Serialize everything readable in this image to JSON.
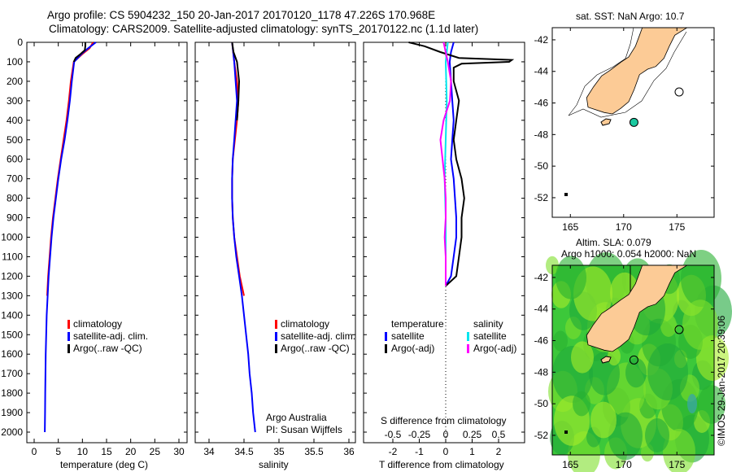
{
  "header": {
    "title_line1": "Argo profile: CS 5904232_150 20-Jan-2017 20170120_1178 47.226S 170.968E",
    "title_line2": "Climatology: CARS2009. Satellite-adjusted climatology: synTS_20170122.nc (1.1d later)"
  },
  "credit": "©IMOS 29-Jan-2017 20:39:06",
  "colors": {
    "climatology": "#ff0000",
    "satellite": "#0000ff",
    "argo": "#000000",
    "sal_satellite": "#00e5ee",
    "sal_argo": "#ff00ff",
    "land": "#fccb96",
    "float": "#1ac9a0"
  },
  "chart_data": [
    {
      "type": "line",
      "name": "temperature-profile",
      "xlabel": "temperature (deg C)",
      "ylabel": "depth",
      "xlim": [
        -1,
        31
      ],
      "ylim": [
        2130,
        0
      ],
      "xticks": [
        "0",
        "5",
        "10",
        "15",
        "20",
        "25",
        "30"
      ],
      "yticks": [
        "0",
        "100",
        "200",
        "300",
        "400",
        "500",
        "600",
        "700",
        "800",
        "900",
        "1000",
        "1100",
        "1200",
        "1300",
        "1400",
        "1500",
        "1600",
        "1700",
        "1800",
        "1900",
        "2000"
      ],
      "legend": [
        "climatology",
        "satellite-adj. clim.",
        "Argo(..raw -QC)"
      ],
      "series": [
        {
          "name": "climatology",
          "color": "#ff0000",
          "depth": [
            0,
            30,
            60,
            100,
            200,
            300,
            400,
            500,
            600,
            700,
            800,
            900,
            1000,
            1100,
            1200,
            1300
          ],
          "values": [
            12.2,
            11.5,
            10,
            8.2,
            7.6,
            7.2,
            6.7,
            6.1,
            5.5,
            4.9,
            4.4,
            3.9,
            3.5,
            3.2,
            2.9,
            2.7
          ]
        },
        {
          "name": "satellite-adj. clim.",
          "color": "#0000ff",
          "depth": [
            0,
            30,
            60,
            100,
            200,
            300,
            400,
            500,
            600,
            700,
            800,
            900,
            1000,
            1100,
            1200,
            1300,
            1400,
            1500,
            1600,
            1700,
            1800,
            1900,
            2000
          ],
          "values": [
            12.8,
            11.2,
            9.8,
            8.3,
            7.8,
            7.4,
            6.9,
            6.3,
            5.6,
            5.0,
            4.5,
            4.0,
            3.6,
            3.3,
            3.0,
            2.8,
            2.6,
            2.5,
            2.4,
            2.35,
            2.3,
            2.25,
            2.2
          ]
        },
        {
          "name": "Argo",
          "color": "#000000",
          "depth": [
            0,
            20,
            40,
            60,
            80,
            100
          ],
          "values": [
            10.6,
            10.6,
            10.5,
            9.6,
            8.6,
            8.2
          ]
        }
      ]
    },
    {
      "type": "line",
      "name": "salinity-profile",
      "xlabel": "salinity",
      "xlim": [
        33.8,
        36.1
      ],
      "ylim": [
        2130,
        0
      ],
      "xticks": [
        "34",
        "34.5",
        "35",
        "35.5",
        "36"
      ],
      "legend": [
        "climatology",
        "satellite-adj. clim.",
        "Argo(..raw -QC)"
      ],
      "annotation": [
        "Argo Australia",
        "PI: Susan Wijffels"
      ],
      "series": [
        {
          "name": "climatology",
          "color": "#ff0000",
          "depth": [
            0,
            100,
            200,
            300,
            400,
            500,
            600,
            700,
            800,
            900,
            1000,
            1100,
            1200,
            1300
          ],
          "values": [
            34.33,
            34.36,
            34.4,
            34.42,
            34.4,
            34.37,
            34.34,
            34.33,
            34.33,
            34.34,
            34.36,
            34.4,
            34.44,
            34.5
          ]
        },
        {
          "name": "satellite-adj. clim.",
          "color": "#0000ff",
          "depth": [
            0,
            100,
            200,
            300,
            400,
            500,
            600,
            700,
            800,
            900,
            1000,
            1100,
            1200,
            1300,
            1400,
            1500,
            1600,
            1700,
            1800,
            1900,
            2000
          ],
          "values": [
            34.33,
            34.36,
            34.38,
            34.4,
            34.38,
            34.36,
            34.34,
            34.33,
            34.33,
            34.34,
            34.36,
            34.39,
            34.43,
            34.47,
            34.5,
            34.53,
            34.56,
            34.58,
            34.61,
            34.63,
            34.66
          ]
        },
        {
          "name": "Argo",
          "color": "#000000",
          "depth": [
            0,
            50,
            100,
            200,
            300,
            400
          ],
          "values": [
            34.33,
            34.35,
            34.4,
            34.43,
            34.42,
            34.4
          ]
        }
      ]
    },
    {
      "type": "line",
      "name": "difference-profile",
      "xlabel": "T difference from climatology",
      "x2label": "S difference from climatology",
      "xlim": [
        -3,
        3.1
      ],
      "ylim": [
        2130,
        0
      ],
      "xticks": [
        "-2",
        "-1",
        "0",
        "1",
        "2"
      ],
      "x2ticks": [
        "-0.5",
        "-0.25",
        "0",
        "0.25",
        "0.5"
      ],
      "legend": {
        "temperature_title": "temperature",
        "salinity_title": "salinity",
        "items": [
          "satellite",
          "Argo(-adj)",
          "satellite",
          "Argo(-adj)"
        ]
      },
      "series": [
        {
          "name": "T satellite",
          "color": "#0000ff",
          "depth": [
            0,
            50,
            100,
            200,
            300,
            400,
            500,
            600,
            700,
            800,
            900,
            1000,
            1100,
            1200,
            1250
          ],
          "values": [
            0.3,
            0.2,
            0.15,
            0.2,
            0.25,
            0.3,
            0.25,
            0.2,
            0.3,
            0.35,
            0.4,
            0.4,
            0.3,
            0.2,
            0
          ]
        },
        {
          "name": "T Argo",
          "color": "#000000",
          "depth": [
            0,
            20,
            50,
            80,
            90,
            100,
            110,
            130,
            200,
            300,
            400,
            500,
            600,
            700,
            800,
            900,
            1000,
            1100,
            1200,
            1250
          ],
          "values": [
            -1.4,
            -0.8,
            -0.2,
            0.5,
            2.5,
            2.4,
            0.6,
            0.3,
            0.3,
            0.5,
            0.4,
            0.3,
            0.4,
            0.6,
            0.7,
            0.6,
            0.6,
            0.5,
            0.4,
            0
          ]
        },
        {
          "name": "S satellite",
          "color": "#00e5ee",
          "depth": [
            0,
            100,
            300,
            500,
            700,
            900,
            1100,
            1250
          ],
          "values": [
            0.02,
            0.0,
            0.01,
            0.0,
            -0.01,
            0.0,
            0.0,
            0.0
          ]
        },
        {
          "name": "S Argo",
          "color": "#ff00ff",
          "depth": [
            0,
            50,
            100,
            200,
            300,
            400,
            500,
            600,
            700,
            800,
            900,
            1000,
            1100,
            1200,
            1250
          ],
          "values": [
            -0.02,
            0.0,
            0.02,
            0.05,
            0.04,
            -0.02,
            -0.05,
            -0.03,
            -0.01,
            0.0,
            0.0,
            -0.01,
            0.0,
            0.0,
            0.0
          ]
        }
      ]
    },
    {
      "type": "scatter",
      "name": "map-sst",
      "title": "sat. SST: NaN Argo: 10.7",
      "xticks": [
        "165",
        "170",
        "175"
      ],
      "yticks": [
        "-42",
        "-44",
        "-46",
        "-48",
        "-50",
        "-52"
      ],
      "float_position": {
        "lon": 170.968,
        "lat": -47.226
      }
    },
    {
      "type": "heatmap",
      "name": "map-sla",
      "title_line1": "Altim. SLA: 0.079",
      "title_line2": "Argo h1000: 0.054 h2000: NaN",
      "xticks": [
        "165",
        "170",
        "175"
      ],
      "yticks": [
        "-42",
        "-44",
        "-46",
        "-48",
        "-50",
        "-52"
      ],
      "float_position": {
        "lon": 170.968,
        "lat": -47.226
      }
    }
  ]
}
